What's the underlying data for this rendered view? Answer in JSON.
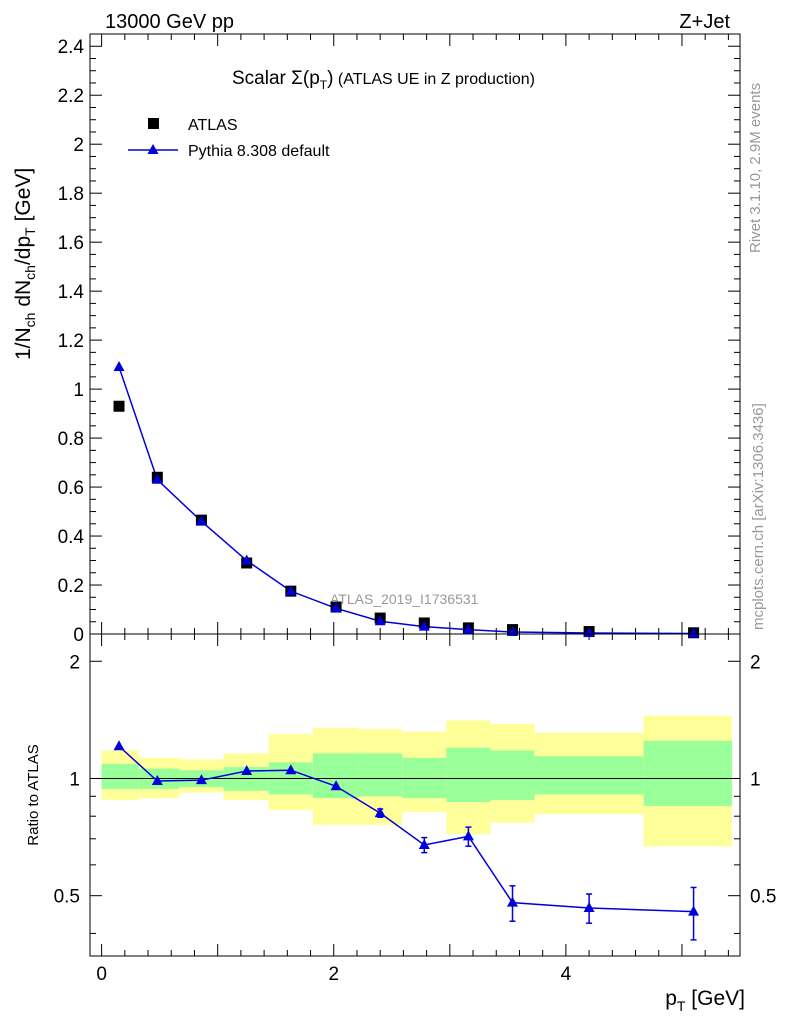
{
  "header": {
    "left": "13000 GeV pp",
    "right": "Z+Jet"
  },
  "side_labels": {
    "rivet": "Rivet 3.1.10,  2.9M events",
    "mcplots": "mcplots.cern.ch [arXiv:1306.3436]"
  },
  "colors": {
    "mc": "#0000dd",
    "data": "#000000",
    "band_inner": "#99ff99",
    "band_outer": "#ffff99",
    "watermark": "#999999"
  },
  "chart_data": [
    {
      "id": "main",
      "type": "scatter",
      "title_prefix": "Scalar ",
      "title_sigma": "Σ(p",
      "title_sub": "T",
      "title_close": ")",
      "title_rest": " (ATLAS UE in Z production)",
      "ylabel": "1/N_ch dN_ch/dp_T [GeV]",
      "ylim": [
        0,
        2.45
      ],
      "xlim": [
        -0.1,
        5.5
      ],
      "yticks": [
        "0",
        "0.2",
        "0.4",
        "0.6",
        "0.8",
        "1",
        "1.2",
        "1.4",
        "1.6",
        "1.8",
        "2",
        "2.2",
        "2.4"
      ],
      "watermark": "ATLAS_2019_I1736531",
      "legend": [
        {
          "name": "ATLAS",
          "marker": "square"
        },
        {
          "name": "Pythia 8.308 default",
          "marker": "triangle"
        }
      ],
      "x": [
        0.15,
        0.48,
        0.86,
        1.25,
        1.63,
        2.02,
        2.4,
        2.78,
        3.16,
        3.54,
        4.2,
        5.1
      ],
      "series": [
        {
          "name": "ATLAS",
          "values": [
            0.93,
            0.64,
            0.465,
            0.29,
            0.175,
            0.11,
            0.065,
            0.045,
            0.025,
            0.018,
            0.01,
            0.005
          ]
        },
        {
          "name": "Pythia 8.308 default",
          "values": [
            1.09,
            0.63,
            0.46,
            0.3,
            0.175,
            0.105,
            0.052,
            0.03,
            0.018,
            0.008,
            0.004,
            0.002
          ]
        }
      ]
    },
    {
      "id": "ratio",
      "type": "line",
      "ylabel": "Ratio to ATLAS",
      "xlabel": "p_T [GeV]",
      "ylim": [
        0.35,
        2.35
      ],
      "xlim": [
        -0.1,
        5.5
      ],
      "xticks": [
        "0",
        "2",
        "4"
      ],
      "yticks": [
        "0.5",
        "1",
        "2"
      ],
      "x": [
        0.15,
        0.48,
        0.86,
        1.25,
        1.63,
        2.02,
        2.4,
        2.78,
        3.16,
        3.54,
        4.2,
        5.1
      ],
      "values": [
        1.21,
        0.985,
        0.99,
        1.045,
        1.05,
        0.955,
        0.815,
        0.675,
        0.71,
        0.48,
        0.465,
        0.455
      ],
      "errors": [
        0.0,
        0.0,
        0.0,
        0.0,
        0.0,
        0.0,
        0.02,
        0.03,
        0.04,
        0.05,
        0.04,
        0.07
      ],
      "bands": [
        {
          "x0": 0.0,
          "x1": 0.32,
          "inner": [
            0.94,
            1.09
          ],
          "outer": [
            0.88,
            1.18
          ]
        },
        {
          "x0": 0.32,
          "x1": 0.67,
          "inner": [
            0.94,
            1.06
          ],
          "outer": [
            0.89,
            1.13
          ]
        },
        {
          "x0": 0.67,
          "x1": 1.05,
          "inner": [
            0.95,
            1.05
          ],
          "outer": [
            0.92,
            1.12
          ]
        },
        {
          "x0": 1.05,
          "x1": 1.44,
          "inner": [
            0.93,
            1.07
          ],
          "outer": [
            0.88,
            1.16
          ]
        },
        {
          "x0": 1.44,
          "x1": 1.82,
          "inner": [
            0.91,
            1.1
          ],
          "outer": [
            0.83,
            1.3
          ]
        },
        {
          "x0": 1.82,
          "x1": 2.21,
          "inner": [
            0.89,
            1.16
          ],
          "outer": [
            0.76,
            1.35
          ]
        },
        {
          "x0": 2.21,
          "x1": 2.59,
          "inner": [
            0.9,
            1.16
          ],
          "outer": [
            0.76,
            1.34
          ]
        },
        {
          "x0": 2.59,
          "x1": 2.97,
          "inner": [
            0.89,
            1.13
          ],
          "outer": [
            0.82,
            1.32
          ]
        },
        {
          "x0": 2.97,
          "x1": 3.35,
          "inner": [
            0.87,
            1.2
          ],
          "outer": [
            0.72,
            1.41
          ]
        },
        {
          "x0": 3.35,
          "x1": 3.73,
          "inner": [
            0.88,
            1.18
          ],
          "outer": [
            0.77,
            1.38
          ]
        },
        {
          "x0": 3.73,
          "x1": 4.67,
          "inner": [
            0.91,
            1.14
          ],
          "outer": [
            0.81,
            1.31
          ]
        },
        {
          "x0": 4.67,
          "x1": 5.43,
          "inner": [
            0.85,
            1.25
          ],
          "outer": [
            0.67,
            1.45
          ]
        }
      ]
    }
  ]
}
